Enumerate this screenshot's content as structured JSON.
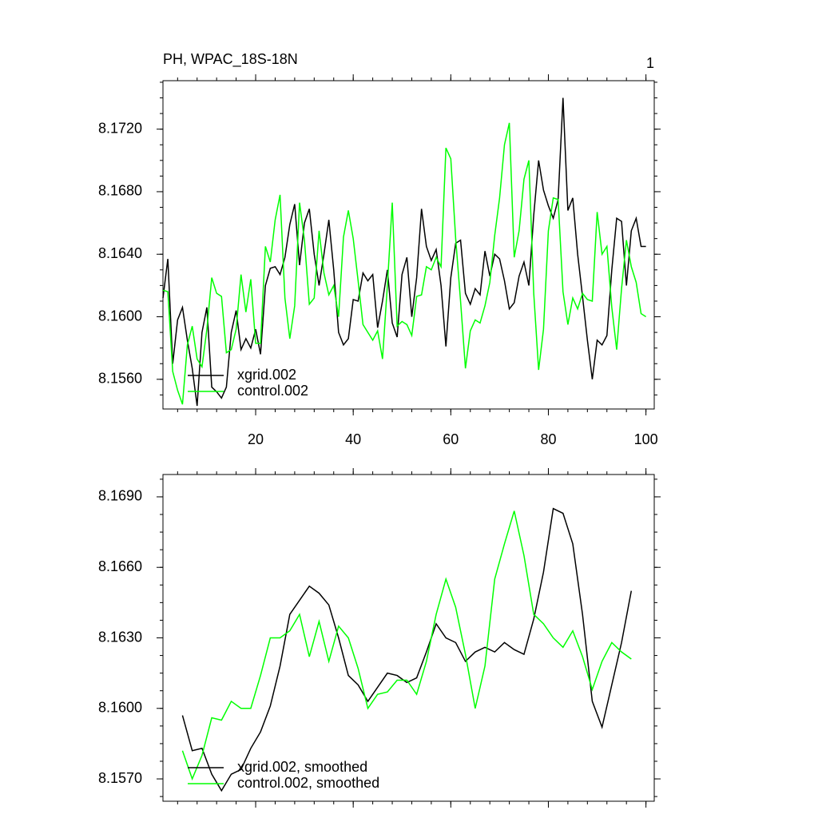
{
  "chart_data": [
    {
      "type": "line",
      "title": "PH, WPAC_18S-18N",
      "right_title": "1",
      "x": [
        1,
        2,
        3,
        4,
        5,
        6,
        7,
        8,
        9,
        10,
        11,
        12,
        13,
        14,
        15,
        16,
        17,
        18,
        19,
        20,
        21,
        22,
        23,
        24,
        25,
        26,
        27,
        28,
        29,
        30,
        31,
        32,
        33,
        34,
        35,
        36,
        37,
        38,
        39,
        40,
        41,
        42,
        43,
        44,
        45,
        46,
        47,
        48,
        49,
        50,
        51,
        52,
        53,
        54,
        55,
        56,
        57,
        58,
        59,
        60,
        61,
        62,
        63,
        64,
        65,
        66,
        67,
        68,
        69,
        70,
        71,
        72,
        73,
        74,
        75,
        76,
        77,
        78,
        79,
        80,
        81,
        82,
        83,
        84,
        85,
        86,
        87,
        88,
        89,
        90,
        91,
        92,
        93,
        94,
        95,
        96,
        97,
        98,
        99,
        100
      ],
      "xlim": [
        1,
        101.7
      ],
      "xticks": [
        20,
        40,
        60,
        80,
        100
      ],
      "xtick_labels": true,
      "ylim": [
        8.1541,
        8.1751
      ],
      "yticks": [
        {
          "value": 8.156,
          "label": "8.1560"
        },
        {
          "value": 8.16,
          "label": "8.1600"
        },
        {
          "value": 8.164,
          "label": "8.1640"
        },
        {
          "value": 8.168,
          "label": "8.1680"
        },
        {
          "value": 8.172,
          "label": "8.1720"
        }
      ],
      "legend": "lower left",
      "series": [
        {
          "name": "xgrid.002",
          "color": "#000000",
          "values": [
            8.1612,
            8.1637,
            8.157,
            8.1598,
            8.1606,
            8.1585,
            8.1567,
            8.1543,
            8.159,
            8.1606,
            8.1555,
            8.1552,
            8.1548,
            8.1555,
            8.159,
            8.1604,
            8.1579,
            8.1586,
            8.158,
            8.1592,
            8.1576,
            8.162,
            8.1631,
            8.1632,
            8.1627,
            8.1638,
            8.1659,
            8.1672,
            8.1633,
            8.166,
            8.1669,
            8.164,
            8.162,
            8.164,
            8.1662,
            8.163,
            8.159,
            8.1582,
            8.1586,
            8.1611,
            8.161,
            8.1628,
            8.1623,
            8.1627,
            8.1593,
            8.161,
            8.163,
            8.1596,
            8.1587,
            8.1627,
            8.1638,
            8.16,
            8.1625,
            8.1669,
            8.1645,
            8.1636,
            8.1643,
            8.162,
            8.1581,
            8.1625,
            8.1647,
            8.1649,
            8.1615,
            8.1608,
            8.1618,
            8.1614,
            8.1642,
            8.1626,
            8.164,
            8.1637,
            8.1623,
            8.1605,
            8.1609,
            8.1626,
            8.1635,
            8.162,
            8.1665,
            8.17,
            8.1681,
            8.1671,
            8.1663,
            8.1675,
            8.174,
            8.1668,
            8.1676,
            8.164,
            8.1613,
            8.1585,
            8.156,
            8.1585,
            8.1582,
            8.1588,
            8.163,
            8.1663,
            8.1661,
            8.162,
            8.1655,
            8.1663,
            8.1645,
            8.1645
          ]
        },
        {
          "name": "control.002",
          "color": "#00ff00",
          "values": [
            8.1617,
            8.1616,
            8.1565,
            8.1553,
            8.1544,
            8.1582,
            8.1594,
            8.1573,
            8.1568,
            8.1592,
            8.1625,
            8.1615,
            8.1613,
            8.1577,
            8.1579,
            8.1592,
            8.1627,
            8.1603,
            8.1624,
            8.1583,
            8.1583,
            8.1645,
            8.1635,
            8.1662,
            8.1678,
            8.1612,
            8.1586,
            8.1607,
            8.1673,
            8.1649,
            8.1608,
            8.1612,
            8.1655,
            8.1628,
            8.1614,
            8.162,
            8.16,
            8.1651,
            8.1668,
            8.165,
            8.1623,
            8.1595,
            8.159,
            8.1585,
            8.1591,
            8.1573,
            8.162,
            8.1673,
            8.1594,
            8.1597,
            8.1595,
            8.1588,
            8.1613,
            8.1614,
            8.1632,
            8.163,
            8.1638,
            8.1632,
            8.1708,
            8.1701,
            8.165,
            8.161,
            8.1567,
            8.1591,
            8.1598,
            8.1596,
            8.1607,
            8.1622,
            8.1652,
            8.1676,
            8.171,
            8.1724,
            8.1638,
            8.1655,
            8.1688,
            8.17,
            8.1615,
            8.1566,
            8.1592,
            8.1655,
            8.1676,
            8.1675,
            8.1616,
            8.1595,
            8.1612,
            8.1605,
            8.1615,
            8.1611,
            8.161,
            8.1667,
            8.164,
            8.1645,
            8.1606,
            8.1579,
            8.1618,
            8.1649,
            8.1632,
            8.1622,
            8.1602,
            8.16
          ]
        }
      ]
    },
    {
      "type": "line",
      "x": [
        5,
        7,
        9,
        11,
        13,
        15,
        17,
        19,
        21,
        23,
        25,
        27,
        29,
        31,
        33,
        35,
        37,
        39,
        41,
        43,
        45,
        47,
        49,
        51,
        53,
        55,
        57,
        59,
        61,
        63,
        65,
        67,
        69,
        71,
        73,
        75,
        77,
        79,
        81,
        83,
        85,
        87,
        89,
        91,
        93,
        95,
        97
      ],
      "xlim": [
        1,
        101.7
      ],
      "xticks": [
        20,
        40,
        60,
        80,
        100
      ],
      "xtick_labels": false,
      "ylim": [
        8.15605,
        8.16995
      ],
      "yticks": [
        {
          "value": 8.157,
          "label": "8.1570"
        },
        {
          "value": 8.16,
          "label": "8.1600"
        },
        {
          "value": 8.163,
          "label": "8.1630"
        },
        {
          "value": 8.166,
          "label": "8.1660"
        },
        {
          "value": 8.169,
          "label": "8.1690"
        }
      ],
      "legend": "lower left",
      "series": [
        {
          "name": "xgrid.002, smoothed",
          "color": "#000000",
          "values": [
            8.1597,
            8.1582,
            8.1583,
            8.1572,
            8.1565,
            8.1572,
            8.1574,
            8.1583,
            8.159,
            8.1601,
            8.1618,
            8.164,
            8.1646,
            8.1652,
            8.1649,
            8.1644,
            8.163,
            8.1614,
            8.161,
            8.1603,
            8.1609,
            8.1615,
            8.1614,
            8.1611,
            8.1613,
            8.1624,
            8.1636,
            8.163,
            8.1628,
            8.162,
            8.1624,
            8.1626,
            8.1624,
            8.1628,
            8.1625,
            8.1623,
            8.1638,
            8.1658,
            8.1685,
            8.1683,
            8.167,
            8.164,
            8.1603,
            8.1592,
            8.161,
            8.1628,
            8.165
          ]
        },
        {
          "name": "control.002, smoothed",
          "color": "#00ff00",
          "values": [
            8.1582,
            8.157,
            8.158,
            8.1596,
            8.1595,
            8.1603,
            8.16,
            8.16,
            8.1614,
            8.163,
            8.163,
            8.1633,
            8.164,
            8.1622,
            8.1637,
            8.162,
            8.1635,
            8.163,
            8.1617,
            8.16,
            8.1606,
            8.1607,
            8.1612,
            8.1612,
            8.1606,
            8.162,
            8.164,
            8.1655,
            8.1643,
            8.1623,
            8.16,
            8.1618,
            8.1655,
            8.167,
            8.1684,
            8.1665,
            8.164,
            8.1636,
            8.163,
            8.1626,
            8.1633,
            8.1622,
            8.1608,
            8.162,
            8.1628,
            8.1624,
            8.1621
          ]
        }
      ]
    }
  ]
}
